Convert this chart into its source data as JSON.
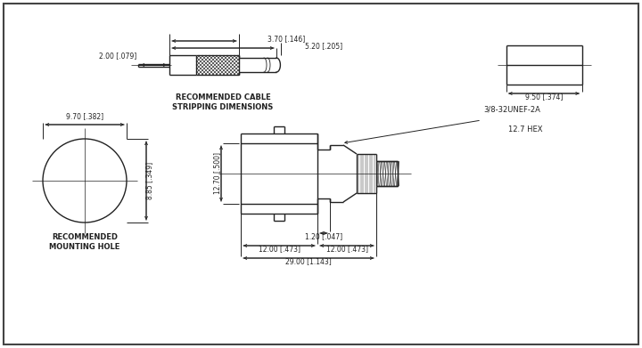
{
  "bg_color": "#ffffff",
  "line_color": "#222222",
  "text_color": "#222222",
  "fig_width": 7.2,
  "fig_height": 3.91,
  "annotations": {
    "dim_3_70": "3.70 [.146]",
    "dim_5_20": "5.20 [.205]",
    "dim_2_00": "2.00 [.079]",
    "dim_9_50": "9.50 [.374]",
    "dim_9_70": "9.70 [.382]",
    "dim_8_85": "8.85 [.349]",
    "dim_12_70_v": "12.70 [.500]",
    "dim_1_20": "1.20 [.047]",
    "dim_12_00_left": "12.00 [.473]",
    "dim_12_00_right": "12.00 [.473]",
    "dim_29_00": "29.00 [1.143]",
    "label_cable": "RECOMMENDED CABLE\nSTRIPPING DIMENSIONS",
    "label_hole": "RECOMMENDED\nMOUNTING HOLE",
    "label_thread": "3/8-32UNEF-2A",
    "label_hex": "12.7 HEX"
  }
}
